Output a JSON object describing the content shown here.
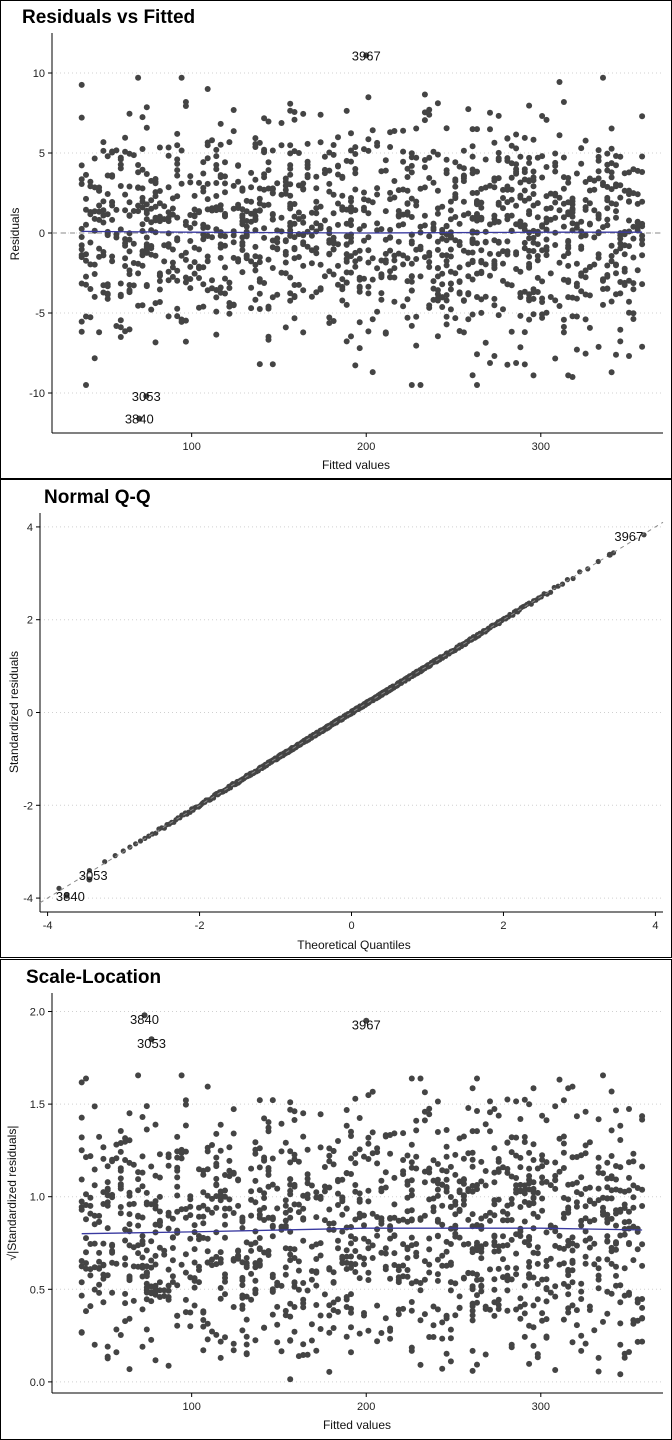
{
  "colors": {
    "points": "#444444",
    "smooth": "#3a3aa0",
    "reference": "#888888",
    "grid": "#d0d0d0",
    "axis": "#000000"
  },
  "chart_data": [
    {
      "type": "scatter",
      "title": "Residuals vs Fitted",
      "xlabel": "Fitted values",
      "ylabel": "Residuals",
      "xlim": [
        20,
        370
      ],
      "ylim": [
        -12.5,
        12.5
      ],
      "x_ticks": [
        100,
        200,
        300
      ],
      "y_ticks": [
        -10,
        -5,
        0,
        5,
        10
      ],
      "grid": "horizontal dotted",
      "reference_line": {
        "y": 0,
        "style": "dashed"
      },
      "smooth": {
        "x": [
          37,
          100,
          200,
          300,
          358
        ],
        "y": [
          0.1,
          0.05,
          0.0,
          0.05,
          0.05
        ]
      },
      "annotations": [
        {
          "label": "3967",
          "x": 200,
          "y": 11.1
        },
        {
          "label": "3053",
          "x": 74,
          "y": -10.2
        },
        {
          "label": "3840",
          "x": 70,
          "y": -11.6
        }
      ],
      "labeled_points": [
        {
          "x": 200,
          "y": 11.1
        },
        {
          "x": 74,
          "y": -10.2
        },
        {
          "x": 70,
          "y": -11.6
        }
      ]
    },
    {
      "type": "scatter",
      "title": "Normal Q-Q",
      "xlabel": "Theoretical Quantiles",
      "ylabel": "Standardized residuals",
      "xlim": [
        -4.1,
        4.1
      ],
      "ylim": [
        -4.3,
        4.3
      ],
      "x_ticks": [
        -4,
        -2,
        0,
        2,
        4
      ],
      "y_ticks": [
        -4,
        -2,
        0,
        2,
        4
      ],
      "grid": "horizontal dotted",
      "reference_line": {
        "slope": 1,
        "intercept": 0,
        "style": "dashed"
      },
      "points_range": {
        "x": [
          -3.85,
          3.85
        ],
        "y": [
          -3.85,
          3.85
        ]
      },
      "annotations": [
        {
          "label": "3967",
          "x": 3.65,
          "y": 3.8
        },
        {
          "label": "3053",
          "x": -3.4,
          "y": -3.5
        },
        {
          "label": "3840",
          "x": -3.7,
          "y": -3.95
        }
      ],
      "labeled_points": [
        {
          "x": 3.4,
          "y": 3.4
        },
        {
          "x": -3.45,
          "y": -3.6
        },
        {
          "x": -3.75,
          "y": -3.95
        }
      ]
    },
    {
      "type": "scatter",
      "title": "Scale-Location",
      "xlabel": "Fitted values",
      "ylabel": "√|Standardized residuals|",
      "xlim": [
        20,
        370
      ],
      "ylim": [
        -0.06,
        2.1
      ],
      "x_ticks": [
        100,
        200,
        300
      ],
      "y_ticks": [
        0.0,
        0.5,
        1.0,
        1.5,
        2.0
      ],
      "y_tick_labels": [
        "0.0",
        "0.5",
        "1.0",
        "1.5",
        "2.0"
      ],
      "grid": "horizontal dotted",
      "smooth": {
        "x": [
          37,
          100,
          200,
          300,
          358
        ],
        "y": [
          0.8,
          0.81,
          0.83,
          0.83,
          0.82
        ]
      },
      "annotations": [
        {
          "label": "3840",
          "x": 73,
          "y": 1.96
        },
        {
          "label": "3053",
          "x": 77,
          "y": 1.83
        },
        {
          "label": "3967",
          "x": 200,
          "y": 1.93
        }
      ],
      "labeled_points": [
        {
          "x": 73,
          "y": 1.98
        },
        {
          "x": 77,
          "y": 1.85
        },
        {
          "x": 200,
          "y": 1.95
        }
      ]
    }
  ]
}
